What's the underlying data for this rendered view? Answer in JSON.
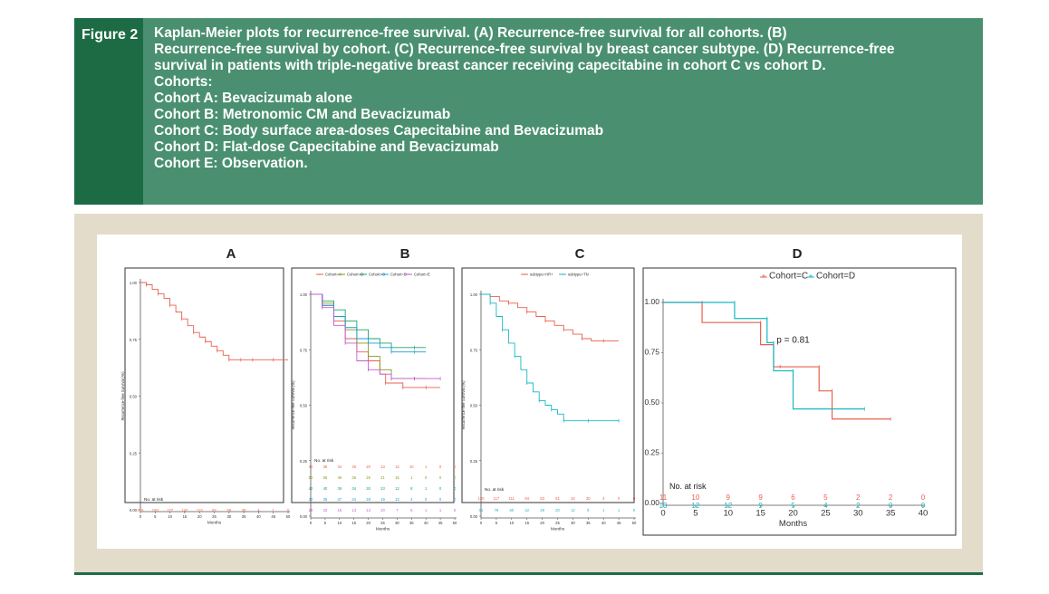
{
  "figure_label": "Figure 2",
  "caption_lines": [
    "Kaplan-Meier plots for recurrence-free survival. (A) Recurrence-free survival for all cohorts. (B)",
    "Recurrence-free survival by cohort. (C) Recurrence-free survival by breast cancer subtype. (D) Recurrence-free",
    "survival in patients with triple-negative breast cancer receiving capecitabine in cohort C vs cohort D.",
    "Cohorts:",
    "Cohort A: Bevacizumab alone",
    "Cohort B: Metronomic CM and Bevacizumab",
    "Cohort C: Body surface area-doses Capecitabine and Bevacizumab",
    "Cohort D: Flat-dose Capecitabine and Bevacizumab",
    "Cohort E: Observation."
  ],
  "colors": {
    "header_bg": "#4a9070",
    "label_bg": "#1d6b45",
    "panel_bg": "#e3dccb"
  },
  "chart_data": [
    {
      "type": "line",
      "panel_label": "A",
      "ylabel": "Recurrence-free Survival (%)",
      "xlabel": "Months",
      "xticks": [
        0,
        5,
        10,
        15,
        20,
        25,
        30,
        35,
        40,
        45,
        50
      ],
      "yticks": [
        "0.00",
        "0.25",
        "0.50",
        "0.75",
        "1.00"
      ],
      "xlim": [
        0,
        50
      ],
      "ylim": [
        0,
        1
      ],
      "risk_label": "No. at risk",
      "series": [
        {
          "color": "#e8614f",
          "x": [
            0,
            2,
            4,
            6,
            8,
            10,
            12,
            14,
            16,
            18,
            20,
            22,
            24,
            26,
            28,
            30,
            32,
            34,
            36,
            38,
            40,
            45,
            50
          ],
          "y": [
            1,
            0.99,
            0.97,
            0.95,
            0.93,
            0.9,
            0.87,
            0.84,
            0.81,
            0.78,
            0.76,
            0.74,
            0.72,
            0.7,
            0.68,
            0.66,
            0.66,
            0.66,
            0.66,
            0.66,
            0.66,
            0.66,
            0.66
          ],
          "risk": [
            "215",
            "193",
            "177",
            "142",
            "113",
            "82",
            "59",
            "38",
            "4",
            "1",
            "0"
          ]
        }
      ]
    },
    {
      "type": "line",
      "panel_label": "B",
      "ylabel": "Recurrence-free Survival (%)",
      "xlabel": "Months",
      "xticks": [
        0,
        5,
        10,
        15,
        20,
        25,
        30,
        35,
        40,
        45,
        50
      ],
      "yticks": [
        "0.00",
        "0.25",
        "0.50",
        "0.75",
        "1.00"
      ],
      "xlim": [
        0,
        50
      ],
      "ylim": [
        0,
        1
      ],
      "risk_label": "No. at risk",
      "series": [
        {
          "name": "Cohort=A",
          "color": "#e8614f",
          "x": [
            0,
            4,
            8,
            12,
            16,
            20,
            24,
            26,
            28,
            32,
            36,
            40,
            45
          ],
          "y": [
            1,
            0.95,
            0.88,
            0.8,
            0.74,
            0.7,
            0.64,
            0.6,
            0.6,
            0.58,
            0.58,
            0.58,
            0.58
          ],
          "risk": [
            "40",
            "38",
            "34",
            "25",
            "20",
            "13",
            "12",
            "10",
            "1",
            "0",
            "0"
          ]
        },
        {
          "name": "Cohort=B",
          "color": "#8a9a1a",
          "x": [
            0,
            4,
            8,
            12,
            16,
            20,
            24,
            28,
            32,
            36,
            40
          ],
          "y": [
            1,
            0.96,
            0.9,
            0.84,
            0.78,
            0.72,
            0.66,
            0.62,
            0.62,
            0.62,
            0.62
          ],
          "risk": [
            "60",
            "55",
            "49",
            "36",
            "25",
            "21",
            "15",
            "1",
            "0",
            "0",
            "0"
          ]
        },
        {
          "name": "Cohort=C",
          "color": "#1aa56a",
          "x": [
            0,
            4,
            8,
            12,
            16,
            20,
            24,
            28,
            32,
            36,
            40
          ],
          "y": [
            1,
            0.97,
            0.93,
            0.88,
            0.84,
            0.8,
            0.78,
            0.76,
            0.76,
            0.76,
            0.76
          ],
          "risk": [
            "42",
            "40",
            "39",
            "34",
            "30",
            "23",
            "12",
            "8",
            "1",
            "0",
            "0"
          ]
        },
        {
          "name": "Cohort=D",
          "color": "#1a9ed8",
          "x": [
            0,
            4,
            8,
            12,
            16,
            20,
            24,
            28,
            32,
            36,
            40
          ],
          "y": [
            1,
            0.95,
            0.9,
            0.85,
            0.8,
            0.78,
            0.76,
            0.74,
            0.74,
            0.74,
            0.74
          ],
          "risk": [
            "40",
            "35",
            "37",
            "34",
            "28",
            "19",
            "13",
            "4",
            "0",
            "0",
            "0"
          ]
        },
        {
          "name": "Cohort=E",
          "color": "#c35bd6",
          "x": [
            0,
            4,
            8,
            12,
            16,
            20,
            24,
            28,
            32,
            36,
            40,
            45
          ],
          "y": [
            1,
            0.94,
            0.86,
            0.78,
            0.7,
            0.66,
            0.64,
            0.62,
            0.62,
            0.62,
            0.62,
            0.62
          ],
          "risk": [
            "29",
            "22",
            "19",
            "13",
            "13",
            "10",
            "7",
            "5",
            "1",
            "1",
            "0"
          ]
        }
      ]
    },
    {
      "type": "line",
      "panel_label": "C",
      "ylabel": "Recurrence-free Survival (%)",
      "xlabel": "Months",
      "xticks": [
        0,
        5,
        10,
        15,
        20,
        25,
        30,
        35,
        40,
        45,
        50
      ],
      "yticks": [
        "0.00",
        "0.25",
        "0.50",
        "0.75",
        "1.00"
      ],
      "xlim": [
        0,
        50
      ],
      "ylim": [
        0,
        1
      ],
      "risk_label": "No. at risk",
      "series": [
        {
          "name": "subtype=HR+",
          "color": "#e8614f",
          "x": [
            0,
            3,
            6,
            9,
            12,
            15,
            18,
            21,
            24,
            27,
            30,
            33,
            36,
            40,
            45
          ],
          "y": [
            1,
            0.99,
            0.97,
            0.96,
            0.94,
            0.92,
            0.9,
            0.88,
            0.86,
            0.84,
            0.82,
            0.8,
            0.79,
            0.79,
            0.79
          ],
          "risk": [
            "120",
            "117",
            "111",
            "94",
            "83",
            "61",
            "42",
            "30",
            "3",
            "0",
            "0"
          ]
        },
        {
          "name": "subtype=TN",
          "color": "#1ab8c4",
          "x": [
            0,
            3,
            5,
            7,
            9,
            11,
            13,
            15,
            17,
            19,
            21,
            23,
            25,
            27,
            30,
            35,
            40,
            45
          ],
          "y": [
            1,
            0.96,
            0.9,
            0.84,
            0.78,
            0.72,
            0.66,
            0.6,
            0.56,
            0.52,
            0.5,
            0.48,
            0.46,
            0.43,
            0.43,
            0.43,
            0.43,
            0.43
          ],
          "risk": [
            "91",
            "78",
            "60",
            "42",
            "29",
            "20",
            "12",
            "9",
            "1",
            "1",
            "0"
          ]
        }
      ]
    },
    {
      "type": "line",
      "panel_label": "D",
      "ylabel": "",
      "xlabel": "Months",
      "xticks": [
        0,
        5,
        10,
        15,
        20,
        25,
        30,
        35,
        40
      ],
      "yticks": [
        "0.00",
        "0.25",
        "0.50",
        "0.75",
        "1.00"
      ],
      "xlim": [
        0,
        40
      ],
      "ylim": [
        0,
        1
      ],
      "risk_label": "No. at risk",
      "annotation": "p = 0.81",
      "series": [
        {
          "name": "Cohort=C",
          "color": "#e8614f",
          "x": [
            0,
            6,
            6,
            15,
            15,
            17,
            17,
            18,
            18,
            24,
            24,
            26,
            26,
            35
          ],
          "y": [
            1,
            1,
            0.9,
            0.9,
            0.79,
            0.79,
            0.68,
            0.68,
            0.68,
            0.68,
            0.56,
            0.56,
            0.42,
            0.42
          ],
          "risk": [
            "11",
            "10",
            "9",
            "9",
            "6",
            "5",
            "2",
            "2",
            "0"
          ]
        },
        {
          "name": "Cohort=D",
          "color": "#1ab8c4",
          "x": [
            0,
            11,
            11,
            16,
            16,
            17,
            17,
            20,
            20,
            31
          ],
          "y": [
            1,
            1,
            0.92,
            0.92,
            0.8,
            0.8,
            0.66,
            0.66,
            0.47,
            0.47
          ],
          "risk": [
            "13",
            "12",
            "12",
            "9",
            "5",
            "4",
            "2",
            "0",
            "0"
          ]
        }
      ]
    }
  ]
}
